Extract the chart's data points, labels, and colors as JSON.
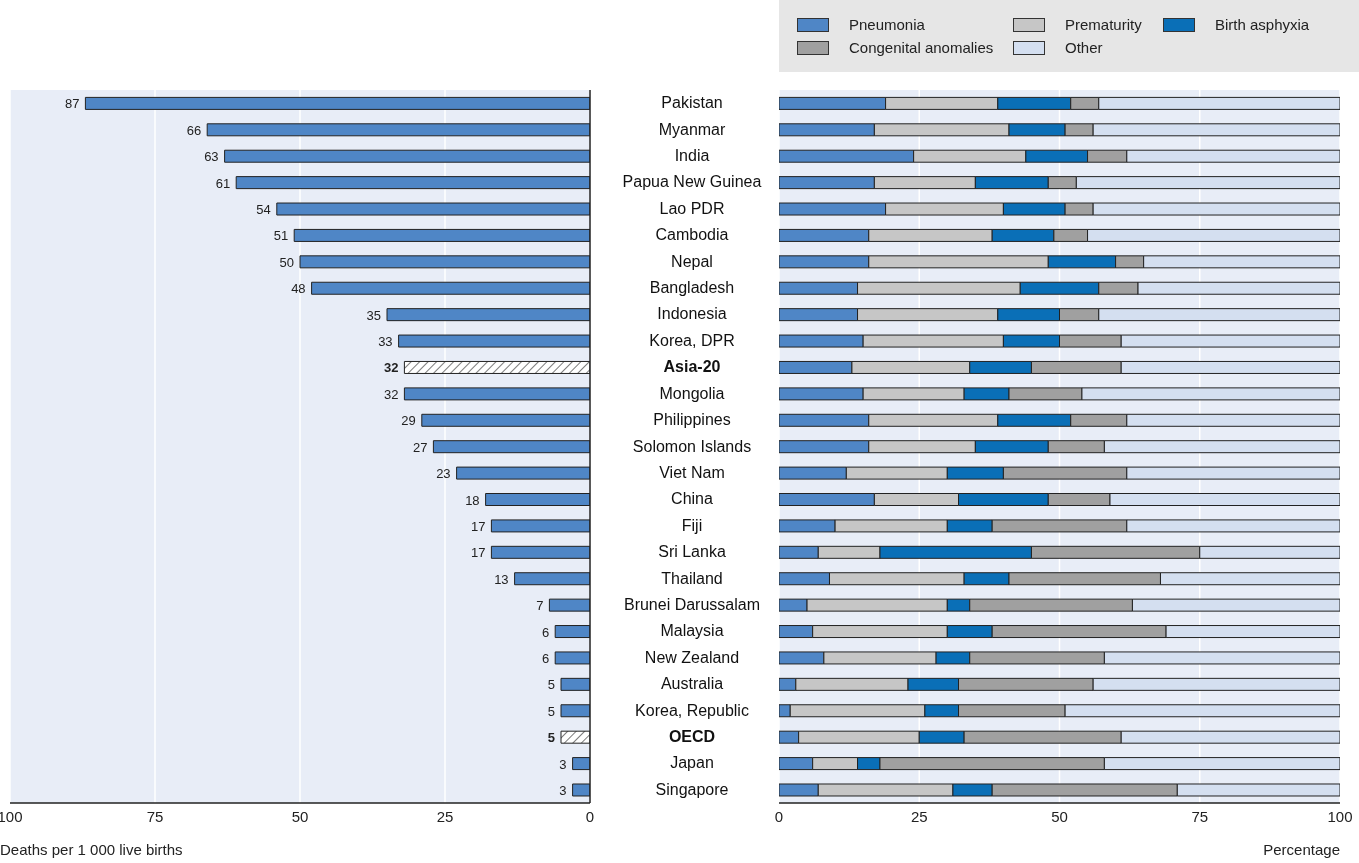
{
  "chart_data": [
    {
      "type": "bar",
      "orientation": "horizontal",
      "xlabel": "Deaths per 1 000 live births",
      "categories": [
        "Pakistan",
        "Myanmar",
        "India",
        "Papua New Guinea",
        "Lao PDR",
        "Cambodia",
        "Nepal",
        "Bangladesh",
        "Indonesia",
        "Korea, DPR",
        "Asia-20",
        "Mongolia",
        "Philippines",
        "Solomon Islands",
        "Viet Nam",
        "China",
        "Fiji",
        "Sri Lanka",
        "Thailand",
        "Brunei Darussalam",
        "Malaysia",
        "New Zealand",
        "Australia",
        "Korea, Republic",
        "OECD",
        "Japan",
        "Singapore"
      ],
      "values": [
        87,
        66,
        63,
        61,
        54,
        51,
        50,
        48,
        35,
        33,
        32,
        32,
        29,
        27,
        23,
        18,
        17,
        17,
        13,
        7,
        6,
        6,
        5,
        5,
        5,
        3,
        3
      ],
      "colors": [
        "#4f86c6",
        "#4f86c6",
        "#4f86c6",
        "#4f86c6",
        "#4f86c6",
        "#4f86c6",
        "#4f86c6",
        "#4f86c6",
        "#4f86c6",
        "#4f86c6",
        "#222222",
        "#4f86c6",
        "#4f86c6",
        "#4f86c6",
        "#4f86c6",
        "#4f86c6",
        "#4f86c6",
        "#4f86c6",
        "#4f86c6",
        "#4f86c6",
        "#4f86c6",
        "#4f86c6",
        "#4f86c6",
        "#4f86c6",
        "#222222",
        "#4f86c6",
        "#4f86c6"
      ],
      "xlim": [
        100,
        0
      ],
      "xticks": [
        100,
        75,
        50,
        25,
        0
      ],
      "grid": "x",
      "data_labels": true
    },
    {
      "type": "bar",
      "orientation": "horizontal",
      "stacked": true,
      "xlabel": "Percentage",
      "tick_labels": "x",
      "legend": "top",
      "xlim": [
        0,
        100
      ],
      "xticks": [
        0,
        25,
        50,
        75,
        100
      ],
      "grid": "x",
      "series": [
        {
          "name": "Pneumonia",
          "color": "#4f86c6",
          "values": [
            19,
            17,
            24,
            17,
            19,
            16,
            16,
            14,
            14,
            15,
            13,
            15,
            16,
            16,
            12,
            17,
            10,
            7,
            9,
            5,
            6,
            8,
            3,
            2,
            3.5,
            6,
            7
          ]
        },
        {
          "name": "Prematurity",
          "color": "#c6c6c6",
          "values": [
            20,
            24,
            20,
            18,
            21,
            22,
            32,
            29,
            25,
            25,
            21,
            18,
            23,
            19,
            18,
            15,
            20,
            11,
            24,
            25,
            24,
            20,
            20,
            24,
            21.5,
            8,
            24
          ]
        },
        {
          "name": "Birth asphyxia",
          "color": "#0a6fb7",
          "values": [
            13,
            10,
            11,
            13,
            11,
            11,
            12,
            14,
            11,
            10,
            11,
            8,
            13,
            13,
            10,
            16,
            8,
            27,
            8,
            4,
            8,
            6,
            9,
            6,
            8,
            4,
            7
          ]
        },
        {
          "name": "Congenital anomalies",
          "color": "#a0a0a0",
          "values": [
            5,
            5,
            7,
            5,
            5,
            6,
            5,
            7,
            7,
            11,
            16,
            13,
            10,
            10,
            22,
            11,
            24,
            30,
            27,
            29,
            31,
            24,
            24,
            19,
            28,
            40,
            33
          ]
        },
        {
          "name": "Other",
          "color": "#d4dff0",
          "values": [
            43,
            44,
            38,
            47,
            44,
            45,
            35,
            36,
            43,
            39,
            39,
            46,
            38,
            42,
            38,
            41,
            38,
            25,
            32,
            37,
            31,
            42,
            44,
            49,
            39,
            42,
            29
          ]
        }
      ]
    }
  ]
}
